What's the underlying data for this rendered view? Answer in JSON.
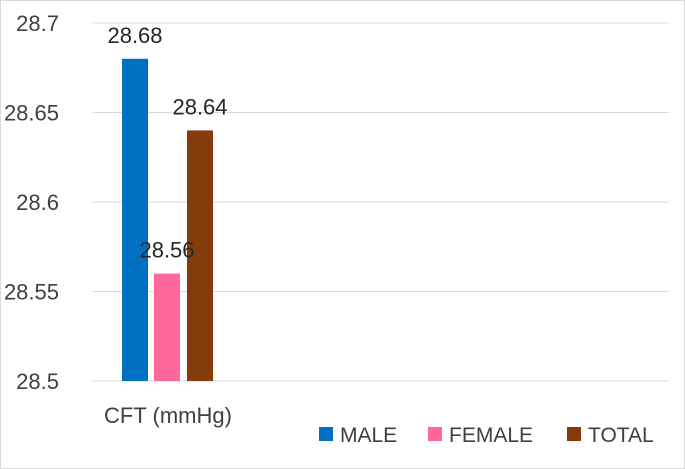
{
  "chart_data": {
    "type": "bar",
    "categories": [
      "CFT (mmHg)"
    ],
    "series": [
      {
        "name": "MALE",
        "values": [
          28.68
        ],
        "color": "#0070c0"
      },
      {
        "name": "FEMALE",
        "values": [
          28.56
        ],
        "color": "#ff6699"
      },
      {
        "name": "TOTAL",
        "values": [
          28.64
        ],
        "color": "#843c0c"
      }
    ],
    "title": "",
    "xlabel": "",
    "ylabel": "",
    "ylim": [
      28.5,
      28.7
    ],
    "yticks": [
      "28.5",
      "28.55",
      "28.6",
      "28.65",
      "28.7"
    ],
    "grid": true,
    "legend_position": "bottom-right",
    "gridline_color": "#d9d9d9",
    "text_color": "#404040"
  }
}
